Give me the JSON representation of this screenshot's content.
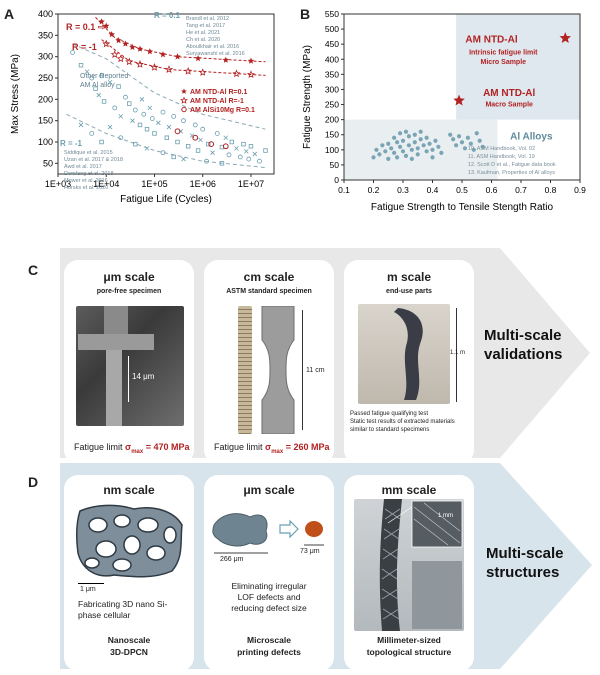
{
  "panels": {
    "a": {
      "letter": "A"
    },
    "b": {
      "letter": "B"
    },
    "c": {
      "letter": "C"
    },
    "d": {
      "letter": "D"
    }
  },
  "chart_data": [
    {
      "type": "scatter",
      "title": "",
      "xlabel": "Fatigue Life (Cycles)",
      "ylabel": "Max Stress (MPa)",
      "xscale": "log",
      "xlim": [
        1000,
        30000000
      ],
      "ylim": [
        25,
        400
      ],
      "xticks": [
        "1E+03",
        "1E+04",
        "1E+05",
        "1E+06",
        "1E+07"
      ],
      "yticks": [
        50,
        100,
        150,
        200,
        250,
        300,
        350,
        400
      ],
      "annotations": [
        "R = 0.1",
        "R = -1",
        "R = 0.1",
        "R = -1",
        "Other Reported",
        "AM Al alloy"
      ],
      "legend_r01": [
        "Brandl et al. 2012",
        "Tang et al. 2017",
        "He et al. 2021",
        "Ch et al. 2020",
        "Aboulkhair et al. 2016",
        "Suryawanshi et al. 2016"
      ],
      "legend_rm1": [
        "Siddique et al. 2015",
        "Uzan et al. 2017 & 2018",
        "Awd et al. 2017",
        "Domfang et al. 2018",
        "Mower et al. 2016",
        "Horsks et al. 2020"
      ],
      "legend_am": [
        "AM NTD-Al R=0.1",
        "AM NTD-Al R=-1",
        "AM AlSi10Mg R=0.1"
      ],
      "series": [
        {
          "name": "AM NTD-Al R=0.1",
          "points": [
            [
              8000,
              382
            ],
            [
              10000,
              372
            ],
            [
              13000,
              352
            ],
            [
              18000,
              338
            ],
            [
              25000,
              330
            ],
            [
              35000,
              322
            ],
            [
              50000,
              318
            ],
            [
              80000,
              312
            ],
            [
              150000,
              305
            ],
            [
              300000,
              300
            ],
            [
              800000,
              296
            ],
            [
              3000000,
              292
            ],
            [
              10000000,
              290
            ]
          ]
        },
        {
          "name": "AM NTD-Al R=-1",
          "points": [
            [
              10000,
              330
            ],
            [
              15000,
              305
            ],
            [
              20000,
              295
            ],
            [
              30000,
              288
            ],
            [
              50000,
              282
            ],
            [
              100000,
              275
            ],
            [
              200000,
              270
            ],
            [
              500000,
              266
            ],
            [
              1000000,
              263
            ],
            [
              5000000,
              260
            ],
            [
              10000000,
              258
            ]
          ]
        },
        {
          "name": "AM AlSi10Mg R=0.1",
          "points": [
            [
              300000,
              125
            ],
            [
              700000,
              110
            ],
            [
              1500000,
              95
            ],
            [
              3000000,
              90
            ]
          ]
        },
        {
          "name": "Other reported AM Al alloy",
          "points": [
            [
              2000,
              310
            ],
            [
              3000,
              280
            ],
            [
              4000,
              265
            ],
            [
              5000,
              250
            ],
            [
              6000,
              225
            ],
            [
              7000,
              210
            ],
            [
              8000,
              255
            ],
            [
              9000,
              195
            ],
            [
              12000,
              240
            ],
            [
              15000,
              180
            ],
            [
              18000,
              230
            ],
            [
              20000,
              160
            ],
            [
              25000,
              205
            ],
            [
              30000,
              190
            ],
            [
              35000,
              150
            ],
            [
              40000,
              175
            ],
            [
              50000,
              140
            ],
            [
              55000,
              200
            ],
            [
              60000,
              165
            ],
            [
              70000,
              130
            ],
            [
              80000,
              180
            ],
            [
              90000,
              155
            ],
            [
              100000,
              120
            ],
            [
              120000,
              145
            ],
            [
              150000,
              170
            ],
            [
              180000,
              110
            ],
            [
              200000,
              135
            ],
            [
              250000,
              160
            ],
            [
              300000,
              100
            ],
            [
              350000,
              125
            ],
            [
              400000,
              150
            ],
            [
              500000,
              90
            ],
            [
              600000,
              115
            ],
            [
              700000,
              140
            ],
            [
              800000,
              80
            ],
            [
              900000,
              105
            ],
            [
              1000000,
              130
            ],
            [
              1300000,
              95
            ],
            [
              1600000,
              75
            ],
            [
              2000000,
              120
            ],
            [
              2500000,
              88
            ],
            [
              3000000,
              110
            ],
            [
              3500000,
              70
            ],
            [
              4000000,
              100
            ],
            [
              5000000,
              85
            ],
            [
              6000000,
              65
            ],
            [
              7000000,
              95
            ],
            [
              8000000,
              78
            ],
            [
              9000000,
              60
            ],
            [
              10000000,
              90
            ],
            [
              12000000,
              72
            ],
            [
              15000000,
              55
            ],
            [
              20000000,
              80
            ],
            [
              3000,
              140
            ],
            [
              5000,
              120
            ],
            [
              8000,
              100
            ],
            [
              12000,
              135
            ],
            [
              20000,
              110
            ],
            [
              40000,
              95
            ],
            [
              70000,
              85
            ],
            [
              150000,
              75
            ],
            [
              250000,
              65
            ],
            [
              400000,
              60
            ],
            [
              1200000,
              55
            ],
            [
              2500000,
              50
            ]
          ]
        }
      ]
    },
    {
      "type": "scatter",
      "title": "",
      "xlabel": "Fatigue Strength to Tensile Stength Ratio",
      "ylabel": "Fatigue Strength (MPa)",
      "xlim": [
        0.1,
        0.9
      ],
      "ylim": [
        0,
        550
      ],
      "xticks": [
        "0.1",
        "0.2",
        "0.3",
        "0.4",
        "0.5",
        "0.6",
        "0.7",
        "0.8",
        "0.9"
      ],
      "yticks": [
        0,
        50,
        100,
        150,
        200,
        250,
        300,
        350,
        400,
        450,
        500,
        550
      ],
      "labels": {
        "micro_title": "AM NTD-Al",
        "micro_sub1": "Intrinsic fatigue limit",
        "micro_sub2": "Micro Sample",
        "macro_title": "AM NTD-Al",
        "macro_sub": "Macro Sample",
        "alloys": "Al Alloys"
      },
      "refs": [
        "10. ASM Handbook, Vol. 02",
        "11. ASM Handbook, Vol. 19",
        "12. Scott D et al., Fatigue data book",
        "13. Kaufman, Properties of Al alloys"
      ],
      "series": [
        {
          "name": "AM NTD-Al Micro",
          "points": [
            [
              0.85,
              470
            ]
          ]
        },
        {
          "name": "AM NTD-Al Macro",
          "points": [
            [
              0.49,
              263
            ]
          ]
        },
        {
          "name": "Al Alloys",
          "points": [
            [
              0.2,
              75
            ],
            [
              0.21,
              100
            ],
            [
              0.22,
              85
            ],
            [
              0.23,
              115
            ],
            [
              0.24,
              95
            ],
            [
              0.25,
              120
            ],
            [
              0.25,
              70
            ],
            [
              0.26,
              105
            ],
            [
              0.27,
              140
            ],
            [
              0.27,
              90
            ],
            [
              0.28,
              125
            ],
            [
              0.28,
              75
            ],
            [
              0.29,
              110
            ],
            [
              0.29,
              155
            ],
            [
              0.3,
              95
            ],
            [
              0.3,
              130
            ],
            [
              0.31,
              160
            ],
            [
              0.31,
              80
            ],
            [
              0.32,
              115
            ],
            [
              0.32,
              145
            ],
            [
              0.33,
              100
            ],
            [
              0.33,
              70
            ],
            [
              0.34,
              125
            ],
            [
              0.34,
              150
            ],
            [
              0.35,
              105
            ],
            [
              0.35,
              85
            ],
            [
              0.36,
              135
            ],
            [
              0.36,
              160
            ],
            [
              0.37,
              115
            ],
            [
              0.38,
              95
            ],
            [
              0.38,
              140
            ],
            [
              0.39,
              120
            ],
            [
              0.4,
              100
            ],
            [
              0.4,
              75
            ],
            [
              0.41,
              130
            ],
            [
              0.42,
              110
            ],
            [
              0.43,
              90
            ],
            [
              0.46,
              150
            ],
            [
              0.47,
              135
            ],
            [
              0.48,
              115
            ],
            [
              0.49,
              145
            ],
            [
              0.5,
              125
            ],
            [
              0.51,
              105
            ],
            [
              0.52,
              140
            ],
            [
              0.53,
              120
            ],
            [
              0.54,
              100
            ],
            [
              0.55,
              155
            ],
            [
              0.56,
              130
            ],
            [
              0.57,
              110
            ]
          ]
        }
      ]
    }
  ],
  "panel_c": {
    "side_label_1": "Multi-scale",
    "side_label_2": "validations",
    "cards": [
      {
        "title": "μm scale",
        "sub": "pore-free specimen",
        "dim": "14 μm",
        "caption_pre": "Fatigue limit ",
        "caption_sym": "σ",
        "caption_subscript": "max",
        "caption_value": " = 470 MPa"
      },
      {
        "title": "cm scale",
        "sub": "ASTM standard specimen",
        "dim": "11 cm",
        "caption_pre": "Fatigue limit ",
        "caption_sym": "σ",
        "caption_subscript": "max",
        "caption_value": " = 260 MPa"
      },
      {
        "title": "m scale",
        "sub": "end-use parts",
        "dim": "1.1 m",
        "caption_1": "Passed fatigue qualifying test",
        "caption_2": "Static test results of extracted materials",
        "caption_3": "similar to standard specimens"
      }
    ]
  },
  "panel_d": {
    "side_label_1": "Multi-scale",
    "side_label_2": "structures",
    "cards": [
      {
        "title": "nm scale",
        "scale_bar": "1 μm",
        "desc_1": "Fabricating 3D nano Si-",
        "desc_2": "phase cellular",
        "footer_1": "Nanoscale",
        "footer_2": "3D-DPCN"
      },
      {
        "title": "μm scale",
        "dim_1": "266 μm",
        "dim_2": "73 μm",
        "desc_1": "Eliminating irregular",
        "desc_2": "LOF defects and",
        "desc_3": "reducing defect size",
        "footer_1": "Microscale",
        "footer_2": "printing defects"
      },
      {
        "title": "mm scale",
        "inset_label": "1 mm",
        "footer_1": "Millimeter-sized",
        "footer_2": "topological structure"
      }
    ]
  },
  "colors": {
    "accent_red": "#b22222",
    "teal": "#6a9fb0",
    "panel_c_bg": "#e8e8e8",
    "panel_d_bg": "#d8e4ec",
    "alloy_box": "#e9eef1",
    "ntd_box": "#dfe8ef"
  }
}
